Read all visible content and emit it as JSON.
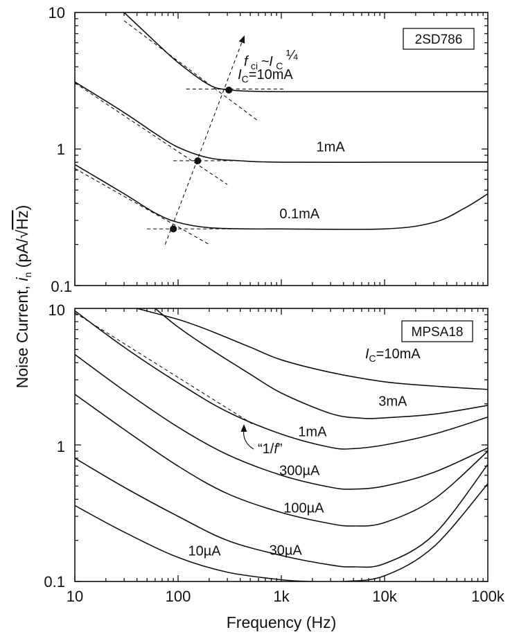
{
  "chart_data": [
    {
      "id": "top",
      "type": "line",
      "title": "2SD786",
      "xscale": "log",
      "yscale": "log",
      "xlim": [
        10,
        100000
      ],
      "ylim": [
        0.1,
        10
      ],
      "ytick_labels": [
        "10",
        "1",
        "0.1"
      ],
      "annotation": {
        "text": "f",
        "sub": "ci",
        "middle": "~I",
        "sub2": "C",
        "exponent": "¼"
      },
      "series": [
        {
          "name": "IC=10mA",
          "label_parts": [
            "I",
            "C",
            "=10mA"
          ],
          "label_at": [
            700,
            3.25
          ],
          "x": [
            30,
            60,
            100,
            200,
            300,
            500,
            1000,
            10000,
            100000
          ],
          "y": [
            10,
            6.1,
            4.3,
            2.95,
            2.72,
            2.65,
            2.63,
            2.63,
            2.63
          ]
        },
        {
          "name": "1mA",
          "label_parts": [
            "",
            "",
            "1mA"
          ],
          "label_at": [
            3000,
            0.96
          ],
          "x": [
            10,
            30,
            60,
            100,
            200,
            400,
            1000,
            10000,
            100000
          ],
          "y": [
            3.1,
            1.85,
            1.3,
            1.03,
            0.86,
            0.82,
            0.8,
            0.8,
            0.8
          ]
        },
        {
          "name": "0.1mA",
          "label_parts": [
            "",
            "",
            "0.1mA"
          ],
          "label_at": [
            1500,
            0.31
          ],
          "x": [
            10,
            30,
            60,
            100,
            200,
            500,
            1000,
            10000,
            30000,
            60000,
            100000
          ],
          "y": [
            0.77,
            0.47,
            0.34,
            0.29,
            0.265,
            0.26,
            0.26,
            0.26,
            0.29,
            0.37,
            0.47
          ]
        }
      ],
      "asymptotes": [
        {
          "x": [
            30,
            600
          ],
          "y": [
            8.7,
            1.6
          ]
        },
        {
          "x": [
            120,
            1100
          ],
          "y": [
            2.75,
            2.75
          ]
        },
        {
          "x": [
            10,
            300
          ],
          "y": [
            3.05,
            0.55
          ]
        },
        {
          "x": [
            90,
            400
          ],
          "y": [
            0.82,
            0.82
          ]
        },
        {
          "x": [
            10,
            200
          ],
          "y": [
            0.72,
            0.2
          ]
        },
        {
          "x": [
            50,
            350
          ],
          "y": [
            0.26,
            0.26
          ]
        }
      ],
      "corner_points": [
        {
          "x": 310,
          "y": 2.7
        },
        {
          "x": 155,
          "y": 0.82
        },
        {
          "x": 90,
          "y": 0.26
        }
      ],
      "corner_line": {
        "x": [
          75,
          440
        ],
        "y": [
          0.2,
          6.8
        ]
      }
    },
    {
      "id": "bottom",
      "type": "line",
      "title": "MPSA18",
      "xscale": "log",
      "yscale": "log",
      "xlim": [
        10,
        100000
      ],
      "ylim": [
        0.1,
        10
      ],
      "xtick_labels": [
        "10",
        "100",
        "1k",
        "10k",
        "100k"
      ],
      "ytick_labels": [
        "10",
        "1",
        "0.1"
      ],
      "xlabel": "Frequency (Hz)",
      "ylabel_parts": [
        "Noise Current, ",
        "i",
        "n",
        " (pA/",
        "√",
        "Hz",
        ")"
      ],
      "series": [
        {
          "name": "IC=10mA",
          "label_parts": [
            "I",
            "C",
            "=10mA"
          ],
          "label_at": [
            12000,
            4.3
          ],
          "x": [
            40,
            100,
            200,
            500,
            1000,
            3000,
            10000,
            30000,
            100000
          ],
          "y": [
            10,
            8.3,
            6.9,
            5.2,
            4.2,
            3.4,
            2.9,
            2.7,
            2.55
          ]
        },
        {
          "name": "3mA",
          "label_parts": [
            "",
            "",
            "3mA"
          ],
          "label_at": [
            12000,
            1.93
          ],
          "x": [
            60,
            100,
            200,
            500,
            1000,
            3000,
            6000,
            10000,
            30000,
            100000
          ],
          "y": [
            10,
            7.3,
            5.1,
            3.3,
            2.4,
            1.7,
            1.57,
            1.58,
            1.68,
            1.95
          ]
        },
        {
          "name": "1mA",
          "label_parts": [
            "",
            "",
            "1mA"
          ],
          "label_at": [
            2000,
            1.16
          ],
          "x": [
            10,
            30,
            100,
            300,
            1000,
            3000,
            5000,
            10000,
            30000,
            100000
          ],
          "y": [
            9.6,
            5.2,
            2.85,
            1.75,
            1.2,
            0.96,
            0.94,
            1.0,
            1.2,
            1.6
          ]
        },
        {
          "name": "300µA",
          "label_parts": [
            "",
            "",
            "300µA"
          ],
          "label_at": [
            1500,
            0.6
          ],
          "x": [
            10,
            30,
            100,
            300,
            1000,
            3000,
            5000,
            10000,
            30000,
            100000
          ],
          "y": [
            4.6,
            2.5,
            1.35,
            0.85,
            0.6,
            0.49,
            0.475,
            0.5,
            0.63,
            0.95
          ]
        },
        {
          "name": "100µA",
          "label_parts": [
            "",
            "",
            "100µA"
          ],
          "label_at": [
            1650,
            0.32
          ],
          "x": [
            10,
            30,
            100,
            300,
            1000,
            3000,
            5000,
            10000,
            30000,
            100000
          ],
          "y": [
            2.35,
            1.3,
            0.7,
            0.44,
            0.32,
            0.265,
            0.255,
            0.27,
            0.4,
            0.9
          ]
        },
        {
          "name": "30µA",
          "label_parts": [
            "",
            "",
            "30µA"
          ],
          "label_at": [
            1100,
            0.157
          ],
          "x": [
            10,
            30,
            100,
            300,
            1000,
            3000,
            5000,
            10000,
            30000,
            100000
          ],
          "y": [
            0.8,
            0.49,
            0.3,
            0.2,
            0.155,
            0.132,
            0.128,
            0.135,
            0.22,
            0.72
          ]
        },
        {
          "name": "10µA",
          "label_parts": [
            "",
            "",
            "10µA"
          ],
          "label_at": [
            180,
            0.155
          ],
          "x": [
            10,
            30,
            100,
            300,
            1000,
            2000,
            4000,
            10000,
            30000,
            100000
          ],
          "y": [
            0.36,
            0.23,
            0.15,
            0.117,
            0.103,
            0.1,
            0.1,
            0.11,
            0.18,
            0.52
          ]
        }
      ],
      "slope_line": {
        "x": [
          10,
          520
        ],
        "y": [
          9.3,
          1.43
        ]
      },
      "slope_label": {
        "open_quote": "“1/",
        "f": "f",
        "close_quote": "”",
        "at": [
          720,
          0.93
        ]
      }
    }
  ]
}
